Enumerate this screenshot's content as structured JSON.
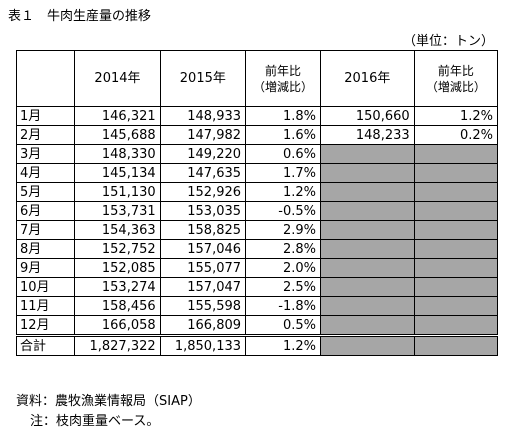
{
  "title": "表１　牛肉生産量の推移",
  "unit": "（単位：トン）",
  "headers": {
    "y2014": "2014年",
    "y2015": "2015年",
    "ratio_line1": "前年比",
    "ratio_line2": "（増減比）",
    "y2016": "2016年"
  },
  "rows": [
    {
      "month": "1月",
      "y2014": "146,321",
      "y2015": "148,933",
      "r2015": "1.8%",
      "y2016": "150,660",
      "r2016": "1.2%"
    },
    {
      "month": "2月",
      "y2014": "145,688",
      "y2015": "147,982",
      "r2015": "1.6%",
      "y2016": "148,233",
      "r2016": "0.2%"
    },
    {
      "month": "3月",
      "y2014": "148,330",
      "y2015": "149,220",
      "r2015": "0.6%"
    },
    {
      "month": "4月",
      "y2014": "145,134",
      "y2015": "147,635",
      "r2015": "1.7%"
    },
    {
      "month": "5月",
      "y2014": "151,130",
      "y2015": "152,926",
      "r2015": "1.2%"
    },
    {
      "month": "6月",
      "y2014": "153,731",
      "y2015": "153,035",
      "r2015": "-0.5%"
    },
    {
      "month": "7月",
      "y2014": "154,363",
      "y2015": "158,825",
      "r2015": "2.9%"
    },
    {
      "month": "8月",
      "y2014": "152,752",
      "y2015": "157,046",
      "r2015": "2.8%"
    },
    {
      "month": "9月",
      "y2014": "152,085",
      "y2015": "155,077",
      "r2015": "2.0%"
    },
    {
      "month": "10月",
      "y2014": "153,274",
      "y2015": "157,047",
      "r2015": "2.5%"
    },
    {
      "month": "11月",
      "y2014": "158,456",
      "y2015": "155,598",
      "r2015": "-1.8%"
    },
    {
      "month": "12月",
      "y2014": "166,058",
      "y2015": "166,809",
      "r2015": "0.5%"
    }
  ],
  "total": {
    "label": "合計",
    "y2014": "1,827,322",
    "y2015": "1,850,133",
    "r2015": "1.2%"
  },
  "source": "資料：農牧漁業情報局（SIAP）",
  "note": "注：枝肉重量ベース。",
  "colors": {
    "empty_cell": "#a6a6a6",
    "border": "#000000"
  }
}
